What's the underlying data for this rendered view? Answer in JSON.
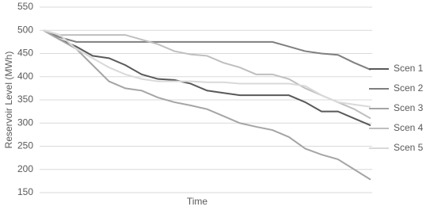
{
  "chart_data": {
    "type": "line",
    "x_label": "Time",
    "y_label": "Reservoir Level (MWh)",
    "categories": [
      null,
      null,
      null,
      null,
      null,
      null,
      null,
      null,
      null,
      null,
      null,
      null,
      null,
      null,
      null,
      null,
      null,
      null,
      null,
      null,
      null
    ],
    "ylim": [
      150,
      550
    ],
    "yticks": [
      150,
      200,
      250,
      300,
      350,
      400,
      450,
      500,
      550
    ],
    "grid": true,
    "legend": "right",
    "series": [
      {
        "name": "Scen 1",
        "color": "#595959",
        "values": [
          500,
          480,
          465,
          445,
          440,
          425,
          405,
          395,
          393,
          385,
          370,
          365,
          360,
          360,
          360,
          360,
          345,
          325,
          325,
          310,
          295
        ]
      },
      {
        "name": "Scen 2",
        "color": "#7f7f7f",
        "values": [
          500,
          485,
          475,
          475,
          475,
          475,
          475,
          475,
          475,
          475,
          475,
          475,
          475,
          475,
          475,
          465,
          455,
          450,
          447,
          430,
          415
        ]
      },
      {
        "name": "Scen 3",
        "color": "#a5a5a5",
        "values": [
          500,
          480,
          460,
          425,
          390,
          375,
          370,
          355,
          345,
          338,
          330,
          315,
          300,
          292,
          285,
          270,
          245,
          232,
          222,
          200,
          178
        ]
      },
      {
        "name": "Scen 4",
        "color": "#bfbfbf",
        "values": [
          500,
          490,
          490,
          490,
          490,
          490,
          480,
          470,
          455,
          448,
          445,
          430,
          420,
          405,
          405,
          395,
          375,
          360,
          345,
          330,
          310
        ]
      },
      {
        "name": "Scen 5",
        "color": "#d9d9d9",
        "values": [
          500,
          490,
          460,
          440,
          420,
          405,
          395,
          390,
          390,
          390,
          388,
          388,
          385,
          385,
          385,
          385,
          380,
          360,
          345,
          340,
          335
        ]
      }
    ]
  }
}
